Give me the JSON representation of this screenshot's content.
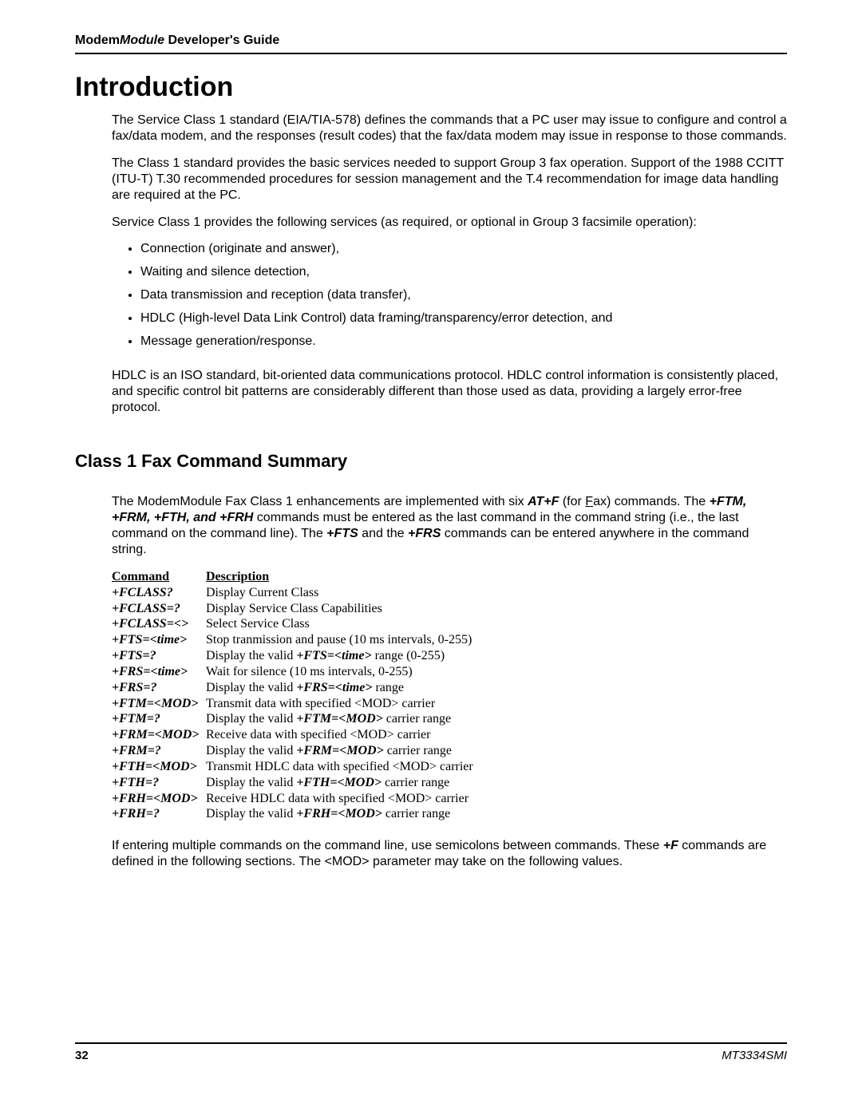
{
  "header": {
    "title_prefix": "Modem",
    "title_italic": "Module",
    "title_suffix": " Developer's Guide"
  },
  "title": "Introduction",
  "para1": "The Service Class 1 standard (EIA/TIA-578) defines the commands that a PC user may issue to configure and control a fax/data modem, and the responses (result codes) that the fax/data modem may issue in response to those commands.",
  "para2": "The Class 1 standard provides the basic services needed to support Group 3 fax operation.  Support of the 1988 CCITT (ITU-T) T.30 recommended procedures for session management and the T.4 recommendation for image data handling are required at the PC.",
  "para3": "Service Class 1 provides the following services (as required, or optional in Group 3 facsimile operation):",
  "bullets": [
    "Connection (originate and answer),",
    "Waiting and silence detection,",
    "Data transmission and reception (data transfer),",
    "HDLC (High-level Data Link Control) data framing/transparency/error detection, and",
    "Message generation/response."
  ],
  "para4": "HDLC is an ISO standard, bit-oriented data communications protocol.  HDLC control information is consistently placed, and specific control bit patterns are considerably different than those used as data, providing a largely error-free protocol.",
  "section_title": "Class 1 Fax Command Summary",
  "para5a": "The ModemModule Fax Class 1 enhancements are implemented with six ",
  "para5b": "AT+F",
  "para5c": " (for ",
  "para5d": "F",
  "para5e": "ax) commands. The ",
  "para5f": "+FTM, +FRM, +FTH, and +FRH",
  "para5g": " commands must be entered as the last command in the command string (i.e., the last command on the command line).  The ",
  "para5h": "+FTS",
  "para5i": " and the ",
  "para5j": "+FRS",
  "para5k": " commands can be entered anywhere in the command string.",
  "table": {
    "header": {
      "c1": "Command",
      "c2": "Description"
    },
    "rows": [
      {
        "c1": "+FCLASS?",
        "desc": [
          {
            "t": "Display Current Class"
          }
        ]
      },
      {
        "c1": "+FCLASS=?",
        "desc": [
          {
            "t": "Display Service Class Capabilities"
          }
        ]
      },
      {
        "c1": "+FCLASS=<>",
        "desc": [
          {
            "t": "Select Service Class"
          }
        ]
      },
      {
        "c1": "+FTS=<time>",
        "desc": [
          {
            "t": "Stop tranmission and pause (10 ms intervals, 0-255)"
          }
        ]
      },
      {
        "c1": "+FTS=?",
        "desc": [
          {
            "t": "Display the valid "
          },
          {
            "t": "+FTS=<time>",
            "bi": true
          },
          {
            "t": " range (0-255)"
          }
        ]
      },
      {
        "c1": "+FRS=<time>",
        "desc": [
          {
            "t": "Wait for silence (10 ms intervals, 0-255)"
          }
        ]
      },
      {
        "c1": "+FRS=?",
        "desc": [
          {
            "t": "Display the valid "
          },
          {
            "t": "+FRS=<time>",
            "bi": true
          },
          {
            "t": " range"
          }
        ]
      },
      {
        "c1": "+FTM=<MOD>",
        "desc": [
          {
            "t": "Transmit data with specified <MOD> carrier"
          }
        ]
      },
      {
        "c1": "+FTM=?",
        "desc": [
          {
            "t": "Display the valid "
          },
          {
            "t": "+FTM=<MOD>",
            "bi": true
          },
          {
            "t": " carrier range"
          }
        ]
      },
      {
        "c1": "+FRM=<MOD>",
        "desc": [
          {
            "t": "Receive data with specified <MOD> carrier"
          }
        ]
      },
      {
        "c1": "+FRM=?",
        "desc": [
          {
            "t": "Display the valid "
          },
          {
            "t": "+FRM=<MOD>",
            "bi": true
          },
          {
            "t": " carrier range"
          }
        ]
      },
      {
        "c1": "+FTH=<MOD>",
        "desc": [
          {
            "t": "Transmit HDLC data with specified <MOD> carrier"
          }
        ]
      },
      {
        "c1": "+FTH=?",
        "desc": [
          {
            "t": "Display the valid "
          },
          {
            "t": "+FTH=<MOD>",
            "bi": true
          },
          {
            "t": " carrier range"
          }
        ]
      },
      {
        "c1": "+FRH=<MOD>",
        "desc": [
          {
            "t": "Receive HDLC data with specified <MOD> carrier"
          }
        ]
      },
      {
        "c1": "+FRH=?",
        "desc": [
          {
            "t": "Display the valid "
          },
          {
            "t": "+FRH=<MOD>",
            "bi": true
          },
          {
            "t": " carrier range"
          }
        ]
      }
    ]
  },
  "para6a": "If entering multiple commands on the command line, use semicolons between commands.  These ",
  "para6b": "+F",
  "para6c": " commands are defined in the following sections.  The <MOD> parameter may take on the following values.",
  "footer": {
    "page": "32",
    "docid": "MT3334SMI"
  }
}
